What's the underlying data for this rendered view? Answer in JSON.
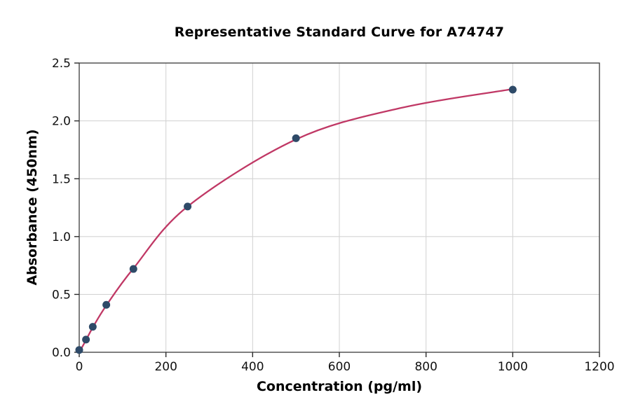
{
  "figure": {
    "background": "#ffffff"
  },
  "chart_data": {
    "type": "scatter",
    "title": "Representative Standard Curve for A74747",
    "xlabel": "Concentration (pg/ml)",
    "ylabel": "Absorbance (450nm)",
    "xlim": [
      0,
      1200
    ],
    "ylim": [
      0,
      2.5
    ],
    "xtick_labels": [
      "0",
      "200",
      "400",
      "600",
      "800",
      "1000",
      "1200"
    ],
    "ytick_labels": [
      "0.0",
      "0.5",
      "1.0",
      "1.5",
      "2.0",
      "2.5"
    ],
    "grid": true,
    "legend": "none",
    "points": [
      {
        "x": 0,
        "y": 0.02
      },
      {
        "x": 15.6,
        "y": 0.11
      },
      {
        "x": 31.25,
        "y": 0.22
      },
      {
        "x": 62.5,
        "y": 0.41
      },
      {
        "x": 125,
        "y": 0.72
      },
      {
        "x": 250,
        "y": 1.26
      },
      {
        "x": 500,
        "y": 1.85
      },
      {
        "x": 1000,
        "y": 2.27
      }
    ],
    "fit_curve": {
      "description": "4PL-style saturating fit through standards, drawn from x=0 to x=1000",
      "anchors": [
        [
          0,
          0.0
        ],
        [
          15.6,
          0.105
        ],
        [
          31.25,
          0.215
        ],
        [
          62.5,
          0.405
        ],
        [
          125,
          0.725
        ],
        [
          250,
          1.26
        ],
        [
          500,
          1.84
        ],
        [
          740,
          2.11
        ],
        [
          1000,
          2.275
        ]
      ]
    },
    "colors": {
      "curve": "#c03865",
      "marker": "#2e4a68",
      "grid": "#d4d4d4",
      "spine": "#3a3a3a",
      "tick": "#2a2a2a",
      "tick_text": "#111111"
    }
  }
}
